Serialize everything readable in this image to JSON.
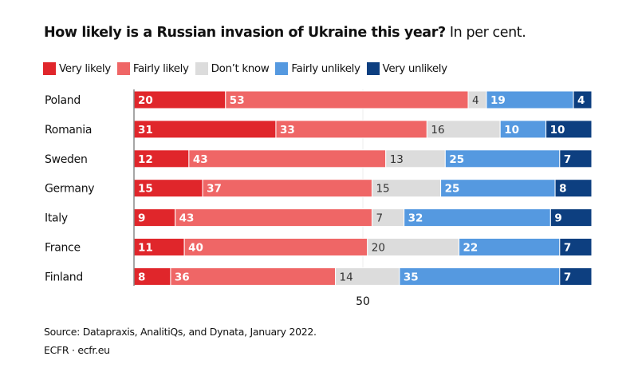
{
  "chart_data": {
    "type": "bar",
    "orientation": "horizontal",
    "stacked": true,
    "title": "How likely is a Russian invasion of Ukraine this year?",
    "subtitle": "In per cent.",
    "categories": [
      "Poland",
      "Romania",
      "Sweden",
      "Germany",
      "Italy",
      "France",
      "Finland"
    ],
    "series": [
      {
        "name": "Very likely",
        "color": "#e0262b",
        "label_color": "#ffffff",
        "values": [
          20,
          31,
          12,
          15,
          9,
          11,
          8
        ]
      },
      {
        "name": "Fairly likely",
        "color": "#ef6666",
        "label_color": "#ffffff",
        "values": [
          53,
          33,
          43,
          37,
          43,
          40,
          36
        ]
      },
      {
        "name": "Don’t know",
        "color": "#dcdcdc",
        "label_color": "#333333",
        "values": [
          4,
          16,
          13,
          15,
          7,
          20,
          14
        ]
      },
      {
        "name": "Fairly unlikely",
        "color": "#5599e0",
        "label_color": "#ffffff",
        "values": [
          19,
          10,
          25,
          25,
          32,
          22,
          35
        ]
      },
      {
        "name": "Very unlikely",
        "color": "#0d3f80",
        "label_color": "#ffffff",
        "values": [
          4,
          10,
          7,
          8,
          9,
          7,
          7
        ]
      }
    ],
    "xlim": [
      0,
      100
    ],
    "xticks": [
      50
    ],
    "legend": "top-left",
    "grid": "single line at 50"
  },
  "footer": {
    "source": "Source: Datapraxis, AnalitiQs, and Dynata, January 2022.",
    "credit": "ECFR · ecfr.eu"
  }
}
